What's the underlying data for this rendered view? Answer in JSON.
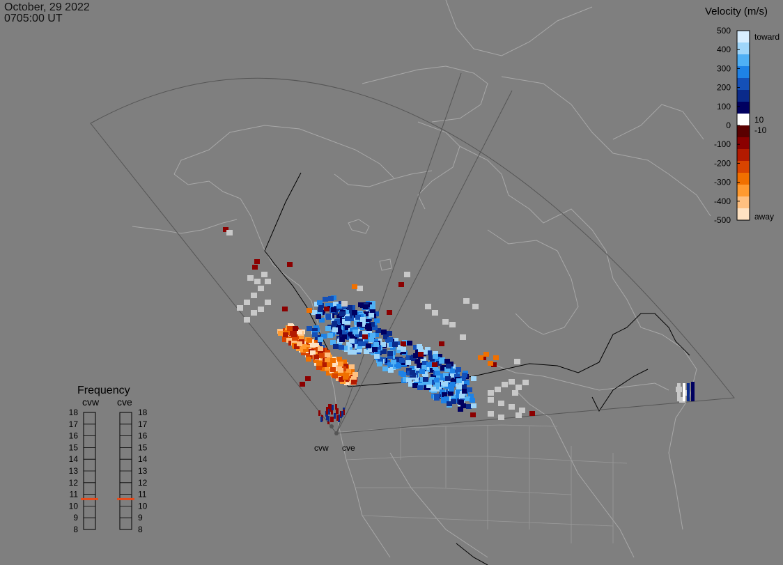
{
  "header": {
    "date": "October, 29 2022",
    "time": "0705:00 UT"
  },
  "legend": {
    "title": "Velocity (m/s)",
    "ticks": [
      "500",
      "400",
      "300",
      "200",
      "100",
      "0",
      "-100",
      "-200",
      "-300",
      "-400",
      "-500"
    ],
    "label_pos": "10",
    "label_neg": "-10",
    "label_toward": "toward",
    "label_away": "away",
    "colors": [
      "#d8eeff",
      "#9fd6fa",
      "#4fb0f5",
      "#1e82e6",
      "#1450b8",
      "#0a2a8a",
      "#000060",
      "#ffffff",
      "#5a0000",
      "#8b0000",
      "#b31a00",
      "#d94400",
      "#f07000",
      "#ff9a30",
      "#ffc080",
      "#ffe2c2"
    ]
  },
  "radars": {
    "west": "cvw",
    "east": "cve"
  },
  "frequency": {
    "title": "Frequency",
    "col_west": "cvw",
    "col_east": "cve",
    "values": [
      "18",
      "17",
      "16",
      "15",
      "14",
      "13",
      "12",
      "11",
      "10",
      "9",
      "8"
    ],
    "marker_value_mhz": 10.6,
    "marker_color": "#e84a1a"
  },
  "map": {
    "fov_color": "#555555",
    "coast_color": "#a8a8a8",
    "ground_scatter_color": "#c8c8c8"
  }
}
